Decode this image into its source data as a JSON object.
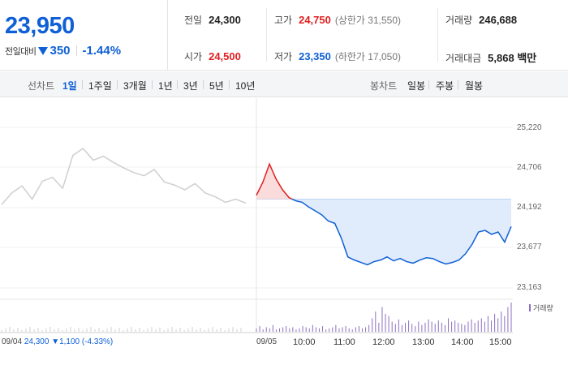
{
  "summary": {
    "price": "23,950",
    "change_label": "전일대비",
    "change_value": "350",
    "change_pct": "-1.44%",
    "prev_close_label": "전일",
    "prev_close": "24,300",
    "open_label": "시가",
    "open": "24,500",
    "high_label": "고가",
    "high": "24,750",
    "upper_limit_label": "(상한가 31,550)",
    "low_label": "저가",
    "low": "23,350",
    "lower_limit_label": "(하한가 17,050)",
    "volume_label": "거래량",
    "volume": "246,688",
    "amount_label": "거래대금",
    "amount": "5,868 백만"
  },
  "toolbar": {
    "line_label": "선차트",
    "line_periods": [
      "1일",
      "1주일",
      "3개월",
      "1년",
      "3년",
      "5년",
      "10년"
    ],
    "active_period": "1일",
    "candle_label": "봉차트",
    "candle_periods": [
      "일봉",
      "주봉",
      "월봉"
    ]
  },
  "chart": {
    "y_ticks": [
      "25,220",
      "24,706",
      "24,192",
      "23,677",
      "23,163"
    ],
    "prev_date": "09/04",
    "prev_info_price": "24,300",
    "prev_info_change": "▼1,100",
    "prev_info_pct": "(-4.33%)",
    "today_date": "09/05",
    "x_ticks": [
      "10:00",
      "11:00",
      "12:00",
      "13:00",
      "14:00",
      "15:00"
    ],
    "volume_legend": "거래량"
  },
  "colors": {
    "up": "#e01f1f",
    "down": "#0f60d6",
    "prev_line": "#cfcfcf",
    "area": "#dde9fb",
    "volume": "#8a6fc0"
  },
  "chart_data": {
    "type": "line",
    "ylim": [
      23163,
      25220
    ],
    "reference_price": 24300,
    "previous_day": {
      "date": "09/04",
      "values": [
        24230,
        24380,
        24470,
        24300,
        24530,
        24580,
        24440,
        24860,
        24950,
        24800,
        24850,
        24770,
        24700,
        24640,
        24600,
        24680,
        24520,
        24480,
        24420,
        24500,
        24380,
        24330,
        24260,
        24300,
        24250
      ]
    },
    "today": {
      "date": "09/05",
      "values": [
        24350,
        24520,
        24750,
        24560,
        24420,
        24320,
        24280,
        24260,
        24200,
        24150,
        24100,
        24020,
        23990,
        23800,
        23560,
        23520,
        23490,
        23460,
        23500,
        23520,
        23560,
        23510,
        23540,
        23500,
        23480,
        23520,
        23550,
        23540,
        23500,
        23470,
        23490,
        23520,
        23600,
        23720,
        23880,
        23900,
        23850,
        23880,
        23750,
        23950
      ]
    },
    "volume": [
      3,
      5,
      2,
      4,
      3,
      6,
      2,
      3,
      4,
      5,
      3,
      4,
      2,
      3,
      5,
      4,
      3,
      6,
      4,
      3,
      5,
      2,
      3,
      4,
      6,
      3,
      4,
      5,
      3,
      2,
      4,
      5,
      3,
      4,
      6,
      12,
      18,
      8,
      22,
      16,
      14,
      9,
      7,
      11,
      6,
      8,
      10,
      7,
      5,
      9,
      6,
      8,
      11,
      9,
      7,
      10,
      8,
      6,
      12,
      9,
      10,
      8,
      7,
      6,
      9,
      11,
      8,
      10,
      12,
      9,
      14,
      10,
      16,
      12,
      18,
      14,
      22,
      26
    ]
  }
}
